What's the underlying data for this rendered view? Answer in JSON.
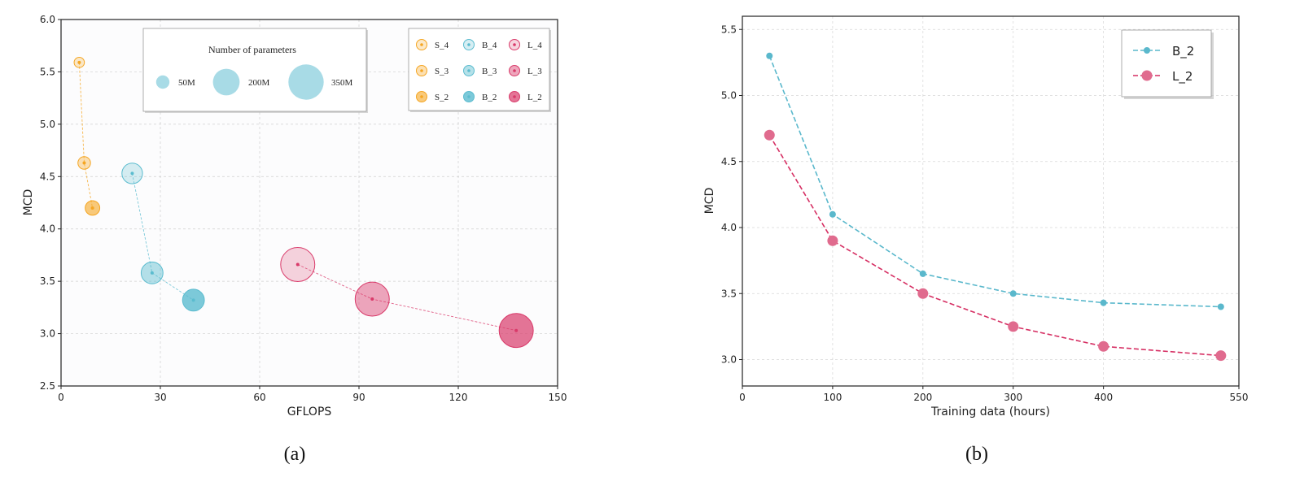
{
  "chart_data": [
    {
      "type": "scatter",
      "caption": "(a)",
      "xlabel": "GFLOPS",
      "ylabel": "MCD",
      "xlim": [
        0,
        150
      ],
      "ylim": [
        2.5,
        6.0
      ],
      "xticks": [
        0,
        30,
        60,
        90,
        120,
        150
      ],
      "yticks": [
        2.5,
        3.0,
        3.5,
        4.0,
        4.5,
        5.0,
        5.5,
        6.0
      ],
      "grid": true,
      "size_legend": {
        "title": "Number of parameters",
        "entries": [
          {
            "label": "50M",
            "params": 50
          },
          {
            "label": "200M",
            "params": 200
          },
          {
            "label": "350M",
            "params": 350
          }
        ],
        "placement": "top-center"
      },
      "model_legend_placement": "top-right",
      "groups": [
        {
          "family": "S",
          "color": "#f5a623",
          "points": [
            {
              "label": "S_4",
              "x": 5.5,
              "y": 5.59,
              "params": 10,
              "alpha": 0.25
            },
            {
              "label": "S_3",
              "x": 7,
              "y": 4.63,
              "params": 15,
              "alpha": 0.35
            },
            {
              "label": "S_2",
              "x": 9.5,
              "y": 4.2,
              "params": 20,
              "alpha": 0.6
            }
          ]
        },
        {
          "family": "B",
          "color": "#5bbccf",
          "points": [
            {
              "label": "B_4",
              "x": 21.5,
              "y": 4.53,
              "params": 40,
              "alpha": 0.25
            },
            {
              "label": "B_3",
              "x": 27.5,
              "y": 3.58,
              "params": 45,
              "alpha": 0.45
            },
            {
              "label": "B_2",
              "x": 40,
              "y": 3.32,
              "params": 45,
              "alpha": 0.8
            }
          ]
        },
        {
          "family": "L",
          "color": "#d93a6a",
          "points": [
            {
              "label": "L_4",
              "x": 71.5,
              "y": 3.66,
              "params": 110,
              "alpha": 0.22
            },
            {
              "label": "L_3",
              "x": 94,
              "y": 3.33,
              "params": 110,
              "alpha": 0.45
            },
            {
              "label": "L_2",
              "x": 137.5,
              "y": 3.03,
              "params": 110,
              "alpha": 0.7
            }
          ]
        }
      ]
    },
    {
      "type": "line",
      "caption": "(b)",
      "xlabel": "Training data (hours)",
      "ylabel": "MCD",
      "xlim": [
        0,
        550
      ],
      "ylim": [
        2.8,
        5.6
      ],
      "xticks": [
        0,
        100,
        200,
        300,
        400,
        550
      ],
      "yticks": [
        3.0,
        3.5,
        4.0,
        4.5,
        5.0,
        5.5
      ],
      "grid": true,
      "legend_placement": "top-right",
      "series": [
        {
          "name": "B_2",
          "color": "#5ab8cc",
          "x": [
            30,
            100,
            200,
            300,
            400,
            530
          ],
          "y": [
            5.3,
            4.1,
            3.65,
            3.5,
            3.43,
            3.4
          ]
        },
        {
          "name": "L_2",
          "color": "#d62f63",
          "marker_color": "#e06b8e",
          "x": [
            30,
            100,
            200,
            300,
            400,
            530
          ],
          "y": [
            4.7,
            3.9,
            3.5,
            3.25,
            3.1,
            3.03
          ]
        }
      ]
    }
  ]
}
